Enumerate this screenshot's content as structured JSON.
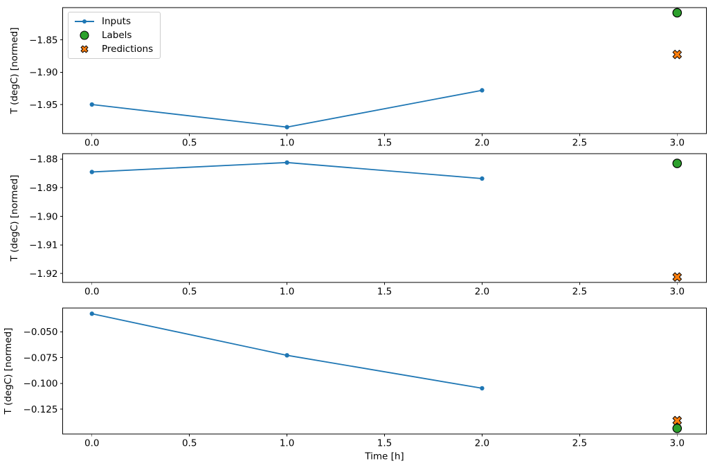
{
  "figure": {
    "background": "#ffffff",
    "frame_color": "#000000",
    "text_color": "#000000"
  },
  "legend": {
    "position": "upper-left",
    "items": [
      {
        "label": "Inputs",
        "marker": "line-dot"
      },
      {
        "label": "Labels",
        "marker": "circle"
      },
      {
        "label": "Predictions",
        "marker": "X"
      }
    ]
  },
  "chart_data": [
    {
      "type": "line",
      "title": "",
      "xlabel": "",
      "ylabel": "T (degC) [normed]",
      "xlim": [
        -0.15,
        3.15
      ],
      "ylim": [
        -1.995,
        -1.8
      ],
      "xticks": [
        0.0,
        0.5,
        1.0,
        1.5,
        2.0,
        2.5,
        3.0
      ],
      "xtick_labels": [
        "0.0",
        "0.5",
        "1.0",
        "1.5",
        "2.0",
        "2.5",
        "3.0"
      ],
      "yticks": [
        -1.85,
        -1.9,
        -1.95
      ],
      "ytick_labels": [
        "−1.85",
        "−1.90",
        "−1.95"
      ],
      "grid": false,
      "series": [
        {
          "name": "Inputs",
          "kind": "line",
          "marker": "dot",
          "color": "#1f77b4",
          "x": [
            0,
            1,
            2
          ],
          "values": [
            -1.95,
            -1.985,
            -1.928
          ]
        },
        {
          "name": "Labels",
          "kind": "scatter",
          "marker": "circle",
          "color": "#2ca02c",
          "edge_color": "#000000",
          "x": [
            3
          ],
          "values": [
            -1.808
          ]
        },
        {
          "name": "Predictions",
          "kind": "scatter",
          "marker": "X",
          "color": "#ff7f0e",
          "edge_color": "#000000",
          "x": [
            3
          ],
          "values": [
            -1.8725
          ]
        }
      ]
    },
    {
      "type": "line",
      "title": "",
      "xlabel": "",
      "ylabel": "T (degC) [normed]",
      "xlim": [
        -0.15,
        3.15
      ],
      "ylim": [
        -1.9231,
        -1.8781
      ],
      "xticks": [
        0.0,
        0.5,
        1.0,
        1.5,
        2.0,
        2.5,
        3.0
      ],
      "xtick_labels": [
        "0.0",
        "0.5",
        "1.0",
        "1.5",
        "2.0",
        "2.5",
        "3.0"
      ],
      "yticks": [
        -1.88,
        -1.89,
        -1.9,
        -1.91,
        -1.92
      ],
      "ytick_labels": [
        "−1.88",
        "−1.89",
        "−1.90",
        "−1.91",
        "−1.92"
      ],
      "grid": false,
      "series": [
        {
          "name": "Inputs",
          "kind": "line",
          "marker": "dot",
          "color": "#1f77b4",
          "x": [
            0,
            1,
            2
          ],
          "values": [
            -1.8845,
            -1.8812,
            -1.8868
          ]
        },
        {
          "name": "Labels",
          "kind": "scatter",
          "marker": "circle",
          "color": "#2ca02c",
          "edge_color": "#000000",
          "x": [
            3
          ],
          "values": [
            -1.8815
          ]
        },
        {
          "name": "Predictions",
          "kind": "scatter",
          "marker": "X",
          "color": "#ff7f0e",
          "edge_color": "#000000",
          "x": [
            3
          ],
          "values": [
            -1.9212
          ]
        }
      ]
    },
    {
      "type": "line",
      "title": "",
      "xlabel": "Time [h]",
      "ylabel": "T (degC) [normed]",
      "xlim": [
        -0.15,
        3.15
      ],
      "ylim": [
        -0.149,
        -0.027
      ],
      "xticks": [
        0.0,
        0.5,
        1.0,
        1.5,
        2.0,
        2.5,
        3.0
      ],
      "xtick_labels": [
        "0.0",
        "0.5",
        "1.0",
        "1.5",
        "2.0",
        "2.5",
        "3.0"
      ],
      "yticks": [
        -0.05,
        -0.075,
        -0.1,
        -0.125
      ],
      "ytick_labels": [
        "−0.050",
        "−0.075",
        "−0.100",
        "−0.125"
      ],
      "grid": false,
      "series": [
        {
          "name": "Inputs",
          "kind": "line",
          "marker": "dot",
          "color": "#1f77b4",
          "x": [
            0,
            1,
            2
          ],
          "values": [
            -0.0325,
            -0.0728,
            -0.1047
          ]
        },
        {
          "name": "Labels",
          "kind": "scatter",
          "marker": "circle",
          "color": "#2ca02c",
          "edge_color": "#000000",
          "x": [
            3
          ],
          "values": [
            -0.1435
          ]
        },
        {
          "name": "Predictions",
          "kind": "scatter",
          "marker": "X",
          "color": "#ff7f0e",
          "edge_color": "#000000",
          "x": [
            3
          ],
          "values": [
            -0.136
          ]
        }
      ]
    }
  ]
}
